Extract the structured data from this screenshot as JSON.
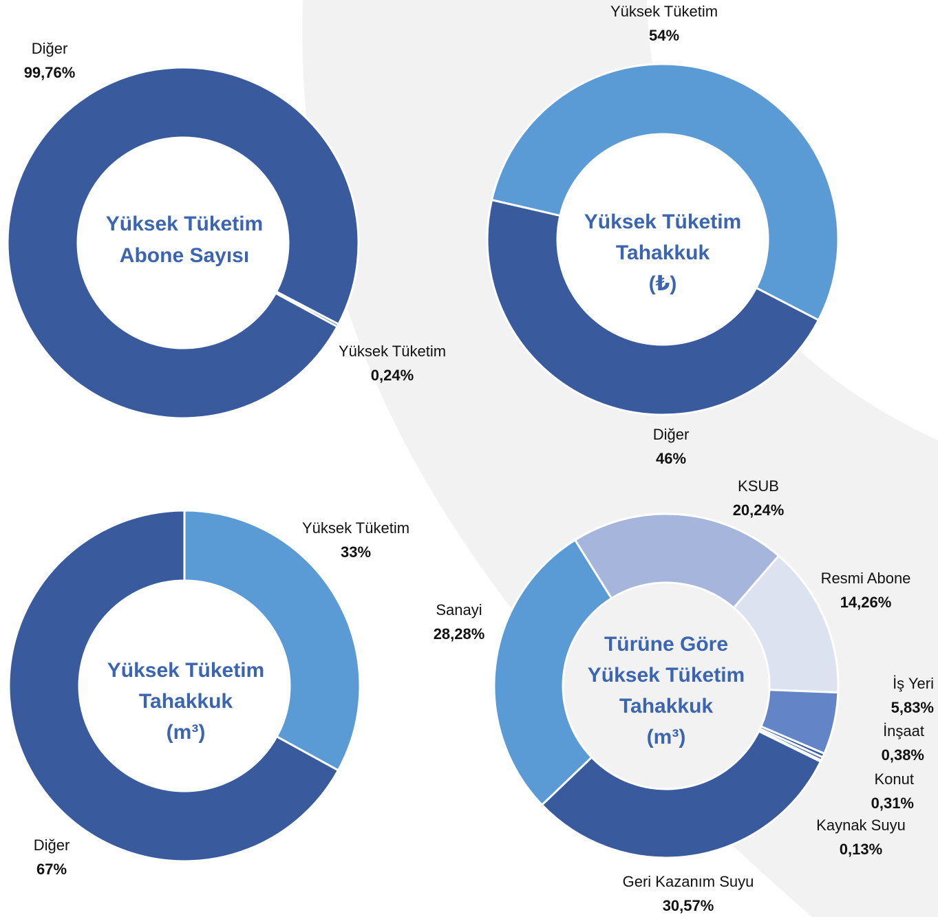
{
  "chart_data": [
    {
      "type": "pie",
      "title": [
        "Yüksek Tüketim",
        "Abone Sayısı"
      ],
      "categories": [
        "Diğer",
        "Yüksek Tüketim"
      ],
      "values": [
        99.76,
        0.24
      ],
      "value_labels": [
        "99,76%",
        "0,24%"
      ],
      "colors": [
        "#3a5a9e",
        "#3a5a9e"
      ]
    },
    {
      "type": "pie",
      "title": [
        "Yüksek Tüketim",
        "Tahakkuk",
        "(₺)"
      ],
      "categories": [
        "Yüksek Tüketim",
        "Diğer"
      ],
      "values": [
        54,
        46
      ],
      "value_labels": [
        "54%",
        "46%"
      ],
      "colors": [
        "#5b9bd5",
        "#3a5a9e"
      ]
    },
    {
      "type": "pie",
      "title": [
        "Yüksek Tüketim",
        "Tahakkuk",
        "(m³)"
      ],
      "categories": [
        "Yüksek Tüketim",
        "Diğer"
      ],
      "values": [
        33,
        67
      ],
      "value_labels": [
        "33%",
        "67%"
      ],
      "colors": [
        "#5b9bd5",
        "#3a5a9e"
      ]
    },
    {
      "type": "pie",
      "title": [
        "Türüne Göre",
        "Yüksek Tüketim",
        "Tahakkuk",
        "(m³)"
      ],
      "categories": [
        "KSUB",
        "Resmi Abone",
        "İş Yeri",
        "İnşaat",
        "Konut",
        "Kaynak Suyu",
        "Geri Kazanım Suyu",
        "Sanayi"
      ],
      "values": [
        20.24,
        14.26,
        5.83,
        0.38,
        0.31,
        0.13,
        30.57,
        28.28
      ],
      "value_labels": [
        "20,24%",
        "14,26%",
        "5,83%",
        "0,38%",
        "0,31%",
        "0,13%",
        "30,57%",
        "28,28%"
      ],
      "colors": [
        "#a6b5dc",
        "#dde2f0",
        "#6484c8",
        "#3a5a9e",
        "#4a6cb4",
        "#8fa8d8",
        "#3a5a9e",
        "#5b9bd5"
      ]
    }
  ]
}
